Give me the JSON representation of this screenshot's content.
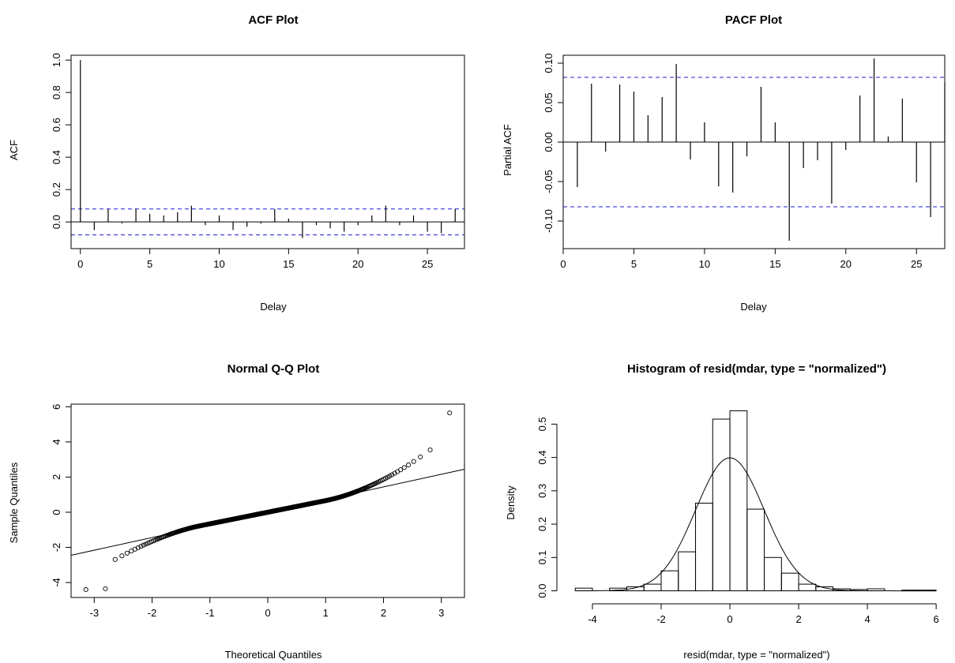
{
  "chart_data": [
    {
      "type": "bar",
      "title": "ACF Plot",
      "xlabel": "Delay",
      "ylabel": "ACF",
      "xlim": [
        0,
        27
      ],
      "ylim": [
        -0.14,
        1.0
      ],
      "xticks": [
        "0",
        "5",
        "10",
        "15",
        "20",
        "25"
      ],
      "yticks": [
        "0.0",
        "0.2",
        "0.4",
        "0.6",
        "0.8",
        "1.0"
      ],
      "ci": 0.08,
      "lags": [
        0,
        1,
        2,
        3,
        4,
        5,
        6,
        7,
        8,
        9,
        10,
        11,
        12,
        13,
        14,
        15,
        16,
        17,
        18,
        19,
        20,
        21,
        22,
        23,
        24,
        25,
        26,
        27
      ],
      "values": [
        1.0,
        -0.05,
        0.08,
        -0.01,
        0.08,
        0.05,
        0.04,
        0.06,
        0.1,
        -0.02,
        0.04,
        -0.05,
        -0.03,
        -0.01,
        0.08,
        0.02,
        -0.1,
        -0.02,
        -0.04,
        -0.06,
        -0.02,
        0.04,
        0.1,
        -0.02,
        0.04,
        -0.06,
        -0.07,
        0.08
      ]
    },
    {
      "type": "bar",
      "title": "PACF Plot",
      "xlabel": "Delay",
      "ylabel": "Partial ACF",
      "xlim": [
        0,
        27
      ],
      "ylim": [
        -0.135,
        0.11
      ],
      "xticks": [
        "0",
        "5",
        "10",
        "15",
        "20",
        "25"
      ],
      "yticks": [
        "-0.10",
        "-0.05",
        "0.00",
        "0.05",
        "0.10"
      ],
      "ci": 0.082,
      "lags": [
        1,
        2,
        3,
        4,
        5,
        6,
        7,
        8,
        9,
        10,
        11,
        12,
        13,
        14,
        15,
        16,
        17,
        18,
        19,
        20,
        21,
        22,
        23,
        24,
        25,
        26,
        27
      ],
      "values": [
        -0.057,
        0.074,
        -0.012,
        0.073,
        0.064,
        0.034,
        0.057,
        0.099,
        -0.022,
        0.025,
        -0.056,
        -0.064,
        -0.018,
        0.07,
        0.025,
        -0.125,
        -0.033,
        -0.023,
        -0.078,
        -0.01,
        0.059,
        0.106,
        0.007,
        0.055,
        -0.051,
        -0.095,
        0.075
      ]
    },
    {
      "type": "scatter",
      "title": "Normal Q-Q Plot",
      "xlabel": "Theoretical Quantiles",
      "ylabel": "Sample Quantiles",
      "xlim": [
        -3.2,
        3.2
      ],
      "ylim": [
        -4.5,
        5.8
      ],
      "xticks": [
        "-3",
        "-2",
        "-1",
        "0",
        "1",
        "2",
        "3"
      ],
      "yticks": [
        "-4",
        "-2",
        "0",
        "2",
        "4",
        "6"
      ],
      "qqline": {
        "slope": 0.72,
        "intercept": 0.0
      },
      "n_points": 600,
      "point_description": "sample quantiles follow the line near the center; heavy upper tail reaching about 5.6 and lower tail reaching about -4.4"
    },
    {
      "type": "bar",
      "title": "Histogram of resid(mdar, type = \"normalized\")",
      "xlabel": "resid(mdar, type = \"normalized\")",
      "ylabel": "Density",
      "xlim": [
        -4.5,
        6
      ],
      "ylim": [
        0,
        0.54
      ],
      "xticks": [
        "-4",
        "-2",
        "0",
        "2",
        "4",
        "6"
      ],
      "yticks": [
        "0.0",
        "0.1",
        "0.2",
        "0.3",
        "0.4",
        "0.5"
      ],
      "bin_width": 0.5,
      "bins": [
        {
          "x0": -4.5,
          "x1": -4.0,
          "density": 0.008
        },
        {
          "x0": -4.0,
          "x1": -3.5,
          "density": 0.0
        },
        {
          "x0": -3.5,
          "x1": -3.0,
          "density": 0.008
        },
        {
          "x0": -3.0,
          "x1": -2.5,
          "density": 0.012
        },
        {
          "x0": -2.5,
          "x1": -2.0,
          "density": 0.02
        },
        {
          "x0": -2.0,
          "x1": -1.5,
          "density": 0.06
        },
        {
          "x0": -1.5,
          "x1": -1.0,
          "density": 0.117
        },
        {
          "x0": -1.0,
          "x1": -0.5,
          "density": 0.263
        },
        {
          "x0": -0.5,
          "x1": 0.0,
          "density": 0.515
        },
        {
          "x0": 0.0,
          "x1": 0.5,
          "density": 0.54
        },
        {
          "x0": 0.5,
          "x1": 1.0,
          "density": 0.245
        },
        {
          "x0": 1.0,
          "x1": 1.5,
          "density": 0.1
        },
        {
          "x0": 1.5,
          "x1": 2.0,
          "density": 0.053
        },
        {
          "x0": 2.0,
          "x1": 2.5,
          "density": 0.02
        },
        {
          "x0": 2.5,
          "x1": 3.0,
          "density": 0.012
        },
        {
          "x0": 3.0,
          "x1": 3.5,
          "density": 0.006
        },
        {
          "x0": 3.5,
          "x1": 4.0,
          "density": 0.004
        },
        {
          "x0": 4.0,
          "x1": 4.5,
          "density": 0.006
        },
        {
          "x0": 4.5,
          "x1": 5.0,
          "density": 0.0
        },
        {
          "x0": 5.0,
          "x1": 5.5,
          "density": 0.002
        },
        {
          "x0": 5.5,
          "x1": 6.0,
          "density": 0.002
        }
      ],
      "density_curve": {
        "type": "normal",
        "mean": 0,
        "sd": 1
      }
    }
  ]
}
